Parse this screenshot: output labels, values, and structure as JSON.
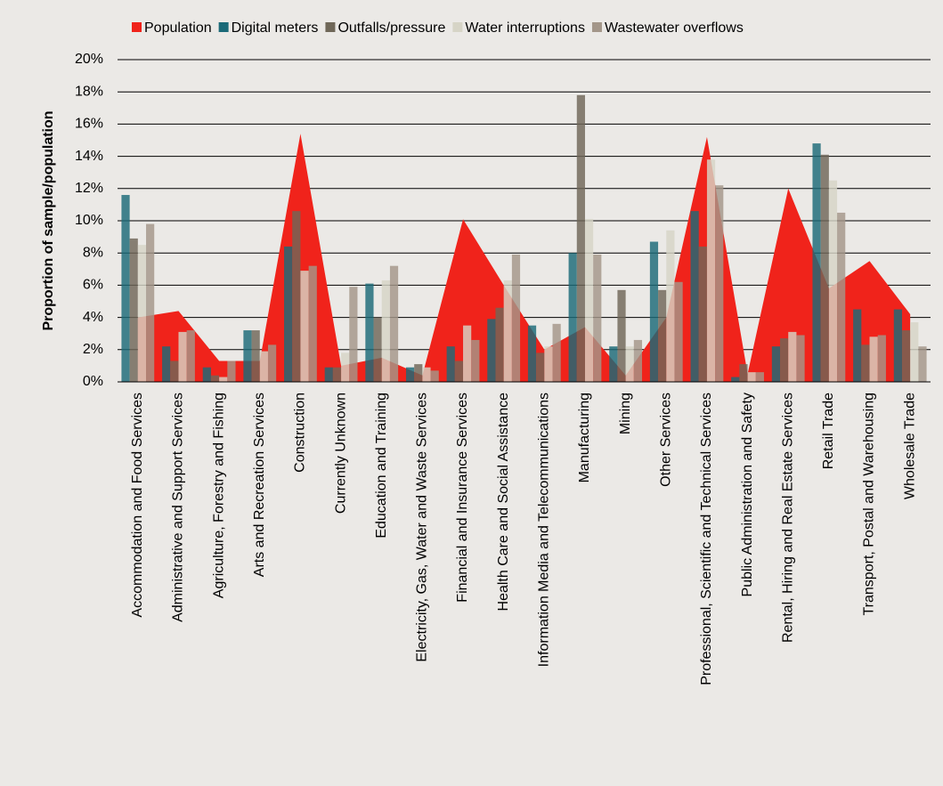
{
  "chart_data": {
    "type": "bar",
    "ylabel": "Proportion of sample/population",
    "categories": [
      "Accommodation and Food Services",
      "Administrative and Support Services",
      "Agriculture, Forestry and Fishing",
      "Arts and Recreation Services",
      "Construction",
      "Currently Unknown",
      "Education and Training",
      "Electricity, Gas, Water and Waste Services",
      "Financial and Insurance Services",
      "Health Care and Social Assistance",
      "Information Media and Telecommunications",
      "Manufacturing",
      "Mining",
      "Other Services",
      "Professional, Scientific and Technical Services",
      "Public Administration and Safety",
      "Rental, Hiring and Real Estate Services",
      "Retail Trade",
      "Transport, Postal and Warehousing",
      "Wholesale Trade"
    ],
    "series": [
      {
        "name": "Population",
        "type": "area",
        "color": "#f0231b",
        "values": [
          4.0,
          4.4,
          1.3,
          1.3,
          15.4,
          1.0,
          1.5,
          0.4,
          10.1,
          6.0,
          2.0,
          3.4,
          0.4,
          4.0,
          15.2,
          0.5,
          12.0,
          5.8,
          7.5,
          4.2
        ]
      },
      {
        "name": "Digital meters",
        "color": "#1b6a78",
        "values": [
          11.6,
          2.2,
          0.9,
          3.2,
          8.4,
          0.9,
          6.1,
          0.9,
          2.2,
          3.9,
          3.5,
          8.0,
          2.2,
          8.7,
          10.6,
          0.3,
          2.2,
          14.8,
          4.5,
          4.5
        ]
      },
      {
        "name": "Outfalls/pressure",
        "color": "#6f6758",
        "values": [
          8.9,
          1.3,
          0.4,
          3.2,
          10.6,
          0.9,
          4.0,
          1.1,
          1.3,
          4.6,
          1.8,
          17.8,
          5.7,
          5.7,
          8.4,
          1.1,
          2.7,
          14.1,
          2.3,
          3.2
        ]
      },
      {
        "name": "Water interruptions",
        "color": "#d6d4c6",
        "values": [
          8.5,
          3.1,
          0.3,
          1.9,
          6.9,
          1.8,
          6.3,
          0.9,
          3.5,
          6.3,
          2.2,
          10.1,
          2.2,
          9.4,
          13.8,
          0.6,
          3.1,
          12.5,
          2.8,
          3.7
        ]
      },
      {
        "name": "Wastewater overflows",
        "color": "#a39689",
        "values": [
          9.8,
          3.2,
          1.3,
          2.3,
          7.2,
          5.9,
          7.2,
          0.7,
          2.6,
          7.9,
          3.6,
          7.9,
          2.6,
          6.2,
          12.2,
          0.6,
          2.9,
          10.5,
          2.9,
          2.2
        ]
      }
    ],
    "ylim": [
      0,
      20
    ],
    "yticks": [
      {
        "value": 0,
        "label": "0%"
      },
      {
        "value": 2,
        "label": "2%"
      },
      {
        "value": 4,
        "label": "4%"
      },
      {
        "value": 6,
        "label": "6%"
      },
      {
        "value": 8,
        "label": "8%"
      },
      {
        "value": 10,
        "label": "10%"
      },
      {
        "value": 12,
        "label": "12%"
      },
      {
        "value": 14,
        "label": "14%"
      },
      {
        "value": 16,
        "label": "16%"
      },
      {
        "value": 18,
        "label": "18%"
      },
      {
        "value": 20,
        "label": "20%"
      }
    ],
    "grid": true,
    "legend": "top"
  }
}
